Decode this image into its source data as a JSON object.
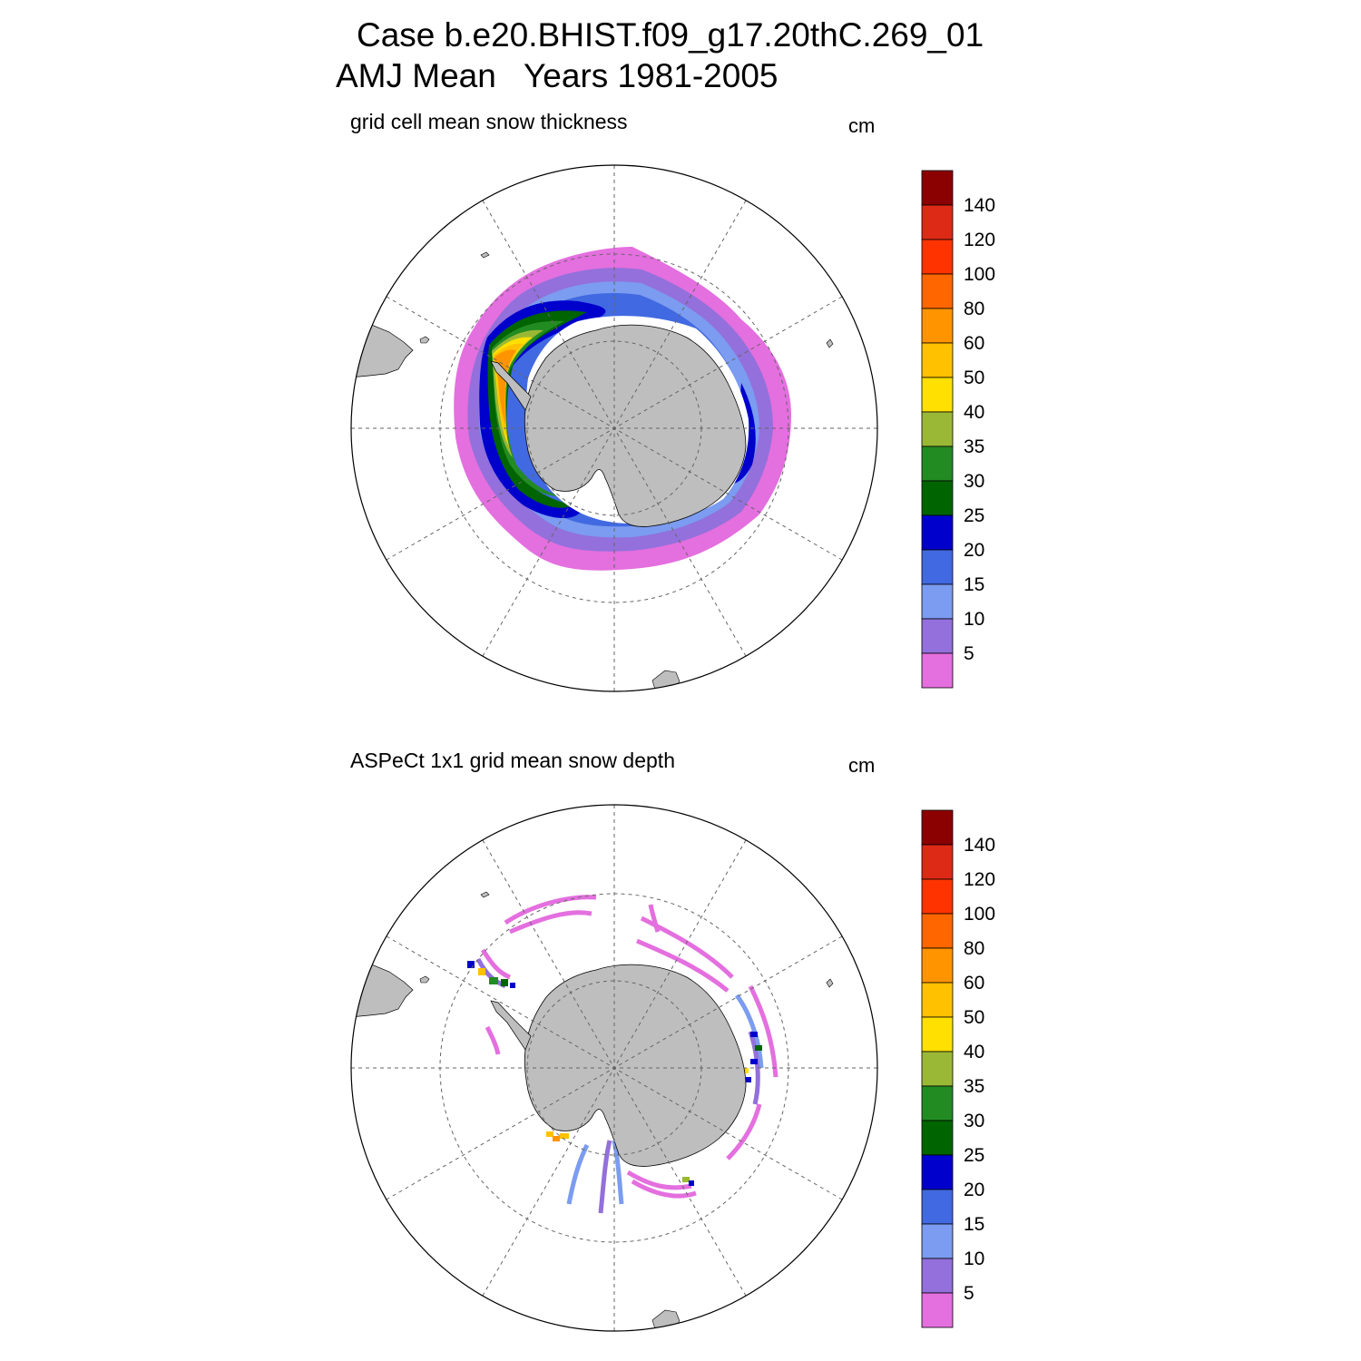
{
  "header": {
    "case_line": "Case b.e20.BHIST.f09_g17.20thC.269_01",
    "season_line": "AMJ Mean   Years 1981-2005"
  },
  "panels": [
    {
      "title": "grid cell mean snow thickness",
      "units": "cm"
    },
    {
      "title": "ASPeCt 1x1 grid mean snow depth",
      "units": "cm"
    }
  ],
  "colorbar": {
    "levels": [
      "5",
      "10",
      "15",
      "20",
      "25",
      "30",
      "35",
      "40",
      "50",
      "60",
      "80",
      "100",
      "120",
      "140"
    ],
    "colors": [
      "#e46fdf",
      "#9370db",
      "#7b9cf0",
      "#4169e1",
      "#0000cd",
      "#006400",
      "#228b22",
      "#9ab835",
      "#ffe000",
      "#ffc100",
      "#ff9400",
      "#ff6600",
      "#ff3300",
      "#dd2a16",
      "#8b0000"
    ]
  },
  "map_colors": {
    "land": "#bebebe",
    "ocean": "#ffffff",
    "grid": "#666666"
  }
}
